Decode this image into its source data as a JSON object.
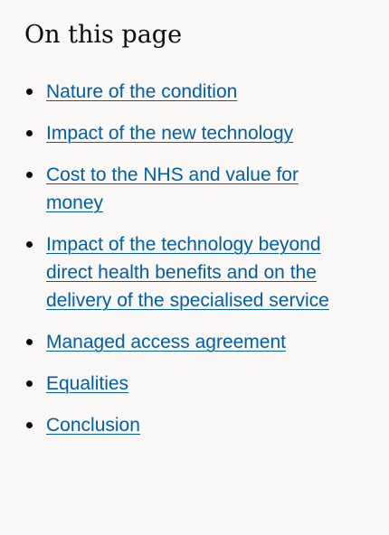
{
  "toc": {
    "heading": "On this page",
    "items": [
      {
        "label": "Nature of the condition"
      },
      {
        "label": "Impact of the new technology"
      },
      {
        "label": "Cost to the NHS and value for money"
      },
      {
        "label": "Impact of the technology beyond direct health benefits and on the delivery of the specialised service"
      },
      {
        "label": "Managed access agreement"
      },
      {
        "label": "Equalities"
      },
      {
        "label": "Conclusion"
      }
    ]
  },
  "colors": {
    "background": "#f9f8f7",
    "text": "#0b0c0c",
    "link": "#005ea5"
  }
}
